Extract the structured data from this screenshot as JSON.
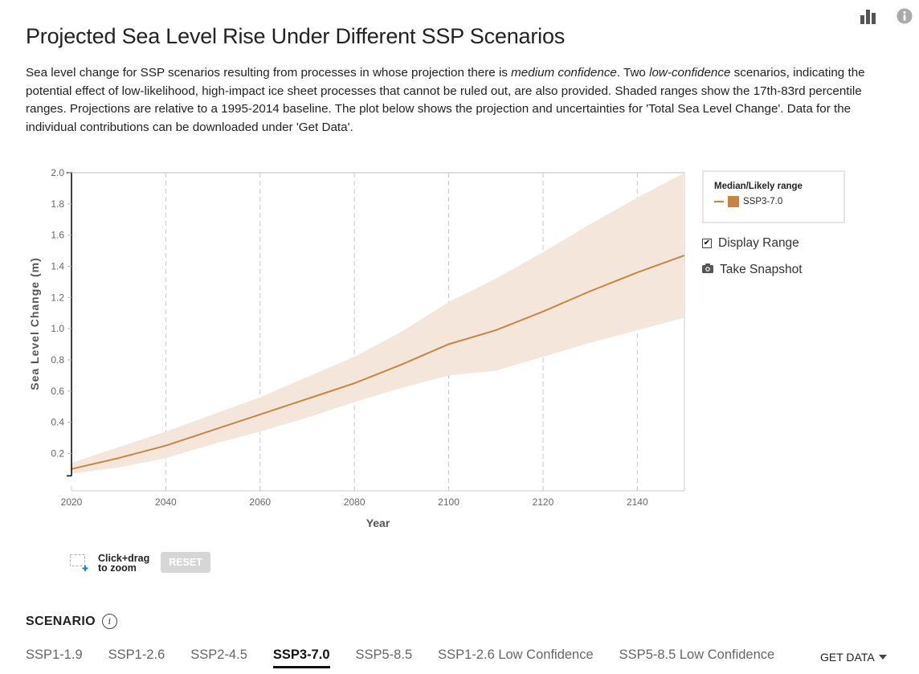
{
  "toolbar": {
    "chart_icon": "bar-chart-icon",
    "info_icon": "info-icon"
  },
  "header": {
    "title": "Projected Sea Level Rise Under Different SSP Scenarios",
    "description_parts": [
      "Sea level change for SSP scenarios resulting from processes in whose projection there is ",
      "medium confidence",
      ". Two ",
      "low-confidence",
      " scenarios, indicating the potential effect of low-likelihood, high-impact ice sheet processes that cannot be ruled out, are also provided. Shaded ranges show the 17th-83rd percentile ranges. Projections are relative to a 1995-2014 baseline. The plot below shows the projection and uncertainties for 'Total Sea Level Change'. Data for the individual contributions can be downloaded under 'Get Data'."
    ]
  },
  "chart_data": {
    "type": "line",
    "title": "",
    "xlabel": "Year",
    "ylabel": "Sea Level Change (m)",
    "xlim": [
      2020,
      2150
    ],
    "ylim": [
      -0.04,
      2.0
    ],
    "y_axis_domain_min": 0.056,
    "x_ticks": [
      2020,
      2040,
      2060,
      2080,
      2100,
      2120,
      2140
    ],
    "x_tick_labels": [
      "2020",
      "2040",
      "2060",
      "2080",
      "2100",
      "2120",
      "2140"
    ],
    "y_ticks": [
      0.2,
      0.4,
      0.6,
      0.8,
      1.0,
      1.2,
      1.4,
      1.6,
      1.8,
      2.0
    ],
    "y_tick_labels": [
      "0.2",
      "0.4",
      "0.6",
      "0.8",
      "1.0",
      "1.2",
      "1.4",
      "1.6",
      "1.8",
      "2.0"
    ],
    "grid": "vertical dashed at x ticks",
    "legend": {
      "title": "Median/Likely range",
      "position": "right"
    },
    "series": [
      {
        "name": "SSP3-7.0",
        "color": "#c98540",
        "range_color": "#f4e6da",
        "x": [
          2020,
          2030,
          2040,
          2050,
          2060,
          2070,
          2080,
          2090,
          2100,
          2110,
          2120,
          2130,
          2140,
          2150
        ],
        "median": [
          0.1,
          0.17,
          0.25,
          0.35,
          0.45,
          0.55,
          0.65,
          0.77,
          0.9,
          0.99,
          1.11,
          1.24,
          1.36,
          1.47
        ],
        "lower": [
          0.07,
          0.11,
          0.17,
          0.26,
          0.34,
          0.43,
          0.53,
          0.62,
          0.7,
          0.73,
          0.82,
          0.91,
          0.99,
          1.07
        ],
        "upper": [
          0.14,
          0.24,
          0.34,
          0.45,
          0.56,
          0.69,
          0.82,
          0.98,
          1.17,
          1.32,
          1.49,
          1.67,
          1.84,
          2.0
        ]
      }
    ]
  },
  "legend": {
    "title": "Median/Likely range",
    "entries": [
      {
        "label": "SSP3-7.0",
        "color": "#c98540"
      }
    ]
  },
  "controls": {
    "display_range_label": "Display Range",
    "display_range_checked": true,
    "snapshot_label": "Take Snapshot",
    "zoom_hint": "Click+drag\nto zoom",
    "zoom_hint_line1": "Click+drag",
    "zoom_hint_line2": "to zoom",
    "reset_label": "RESET"
  },
  "scenario": {
    "label": "SCENARIO",
    "info_glyph": "i",
    "tabs": [
      {
        "label": "SSP1-1.9",
        "active": false
      },
      {
        "label": "SSP1-2.6",
        "active": false
      },
      {
        "label": "SSP2-4.5",
        "active": false
      },
      {
        "label": "SSP3-7.0",
        "active": true
      },
      {
        "label": "SSP5-8.5",
        "active": false
      },
      {
        "label": "SSP1-2.6 Low Confidence",
        "active": false
      },
      {
        "label": "SSP5-8.5 Low Confidence",
        "active": false
      }
    ],
    "get_data_label": "GET DATA"
  }
}
